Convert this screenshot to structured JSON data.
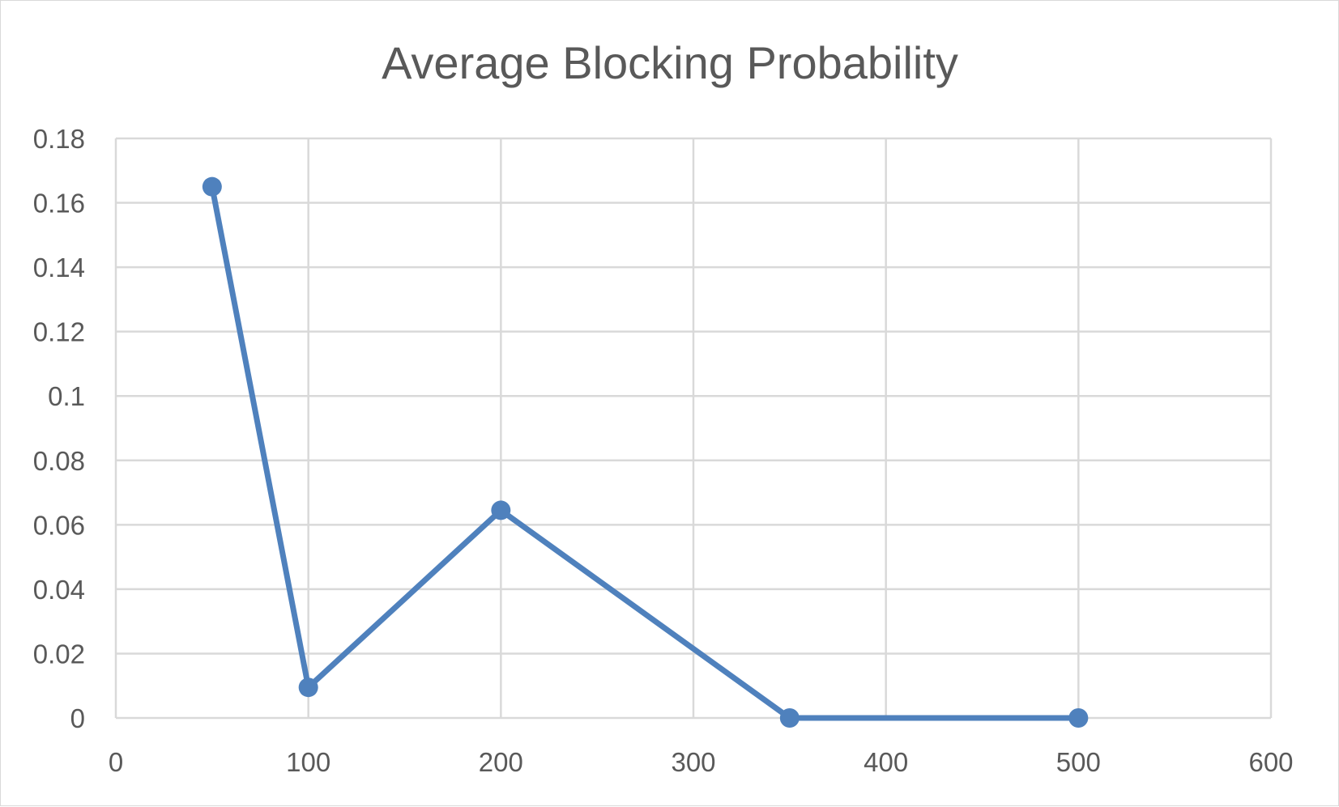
{
  "chart_data": {
    "type": "scatter",
    "title": "Average Blocking Probability",
    "xlabel": "",
    "ylabel": "",
    "xlim": [
      0,
      600
    ],
    "ylim": [
      0,
      0.18
    ],
    "x_ticks": [
      "0",
      "100",
      "200",
      "300",
      "400",
      "500",
      "600"
    ],
    "y_ticks": [
      "0",
      "0.02",
      "0.04",
      "0.06",
      "0.08",
      "0.1",
      "0.12",
      "0.14",
      "0.16",
      "0.18"
    ],
    "grid": true,
    "legend": "none",
    "series": [
      {
        "color": "#4f81bd",
        "points": [
          {
            "x": 50,
            "y": 0.165
          },
          {
            "x": 100,
            "y": 0.0095
          },
          {
            "x": 200,
            "y": 0.0645
          },
          {
            "x": 350,
            "y": 0
          },
          {
            "x": 500,
            "y": 0
          }
        ]
      }
    ]
  }
}
